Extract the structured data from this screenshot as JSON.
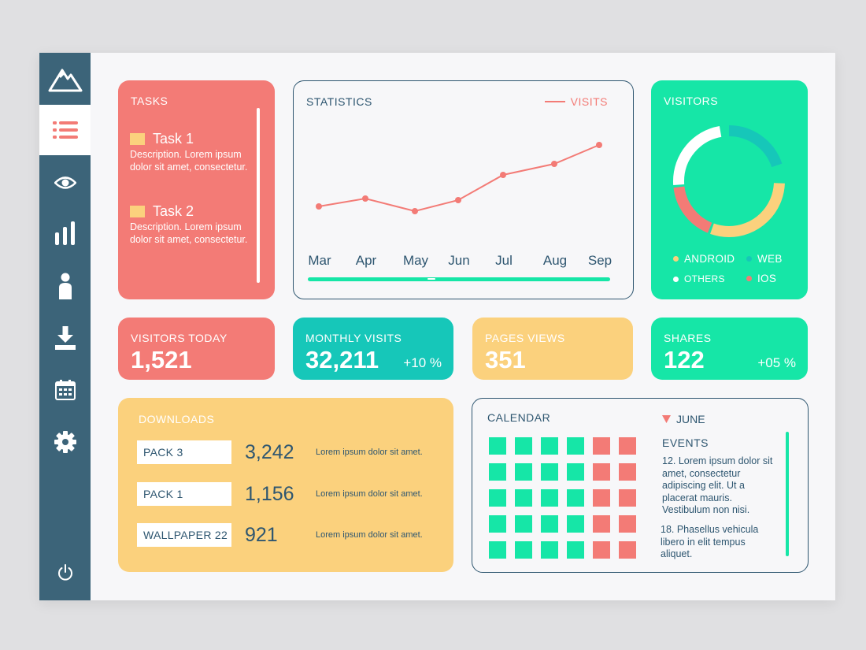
{
  "colors": {
    "red": "#f37b76",
    "teal": "#16c7b9",
    "yellow": "#fbd17d",
    "green": "#16e6a7",
    "navy": "#2e5670",
    "sidebar": "#3c6479"
  },
  "sidebar": {
    "logo_icon": "mountain-icon",
    "items": [
      {
        "icon": "list-icon",
        "active": true
      },
      {
        "icon": "eye-icon",
        "active": false
      },
      {
        "icon": "bar-chart-icon",
        "active": false
      },
      {
        "icon": "user-icon",
        "active": false
      },
      {
        "icon": "download-icon",
        "active": false
      },
      {
        "icon": "calendar-icon",
        "active": false
      },
      {
        "icon": "gear-icon",
        "active": false
      }
    ],
    "bottom_icon": "power-icon"
  },
  "tasks": {
    "title": "TASKS",
    "items": [
      {
        "title": "Task 1",
        "description": "Description. Lorem ipsum dolor sit amet, consectetur."
      },
      {
        "title": "Task 2",
        "description": "Description. Lorem ipsum dolor sit amet, consectetur."
      }
    ]
  },
  "statistics": {
    "title": "STATISTICS",
    "legend": "VISITS",
    "months": [
      "Mar",
      "Apr",
      "May",
      "Jun",
      "Jul",
      "Aug",
      "Sep"
    ]
  },
  "visitors": {
    "title": "VISITORS",
    "legend": [
      {
        "label": "ANDROID",
        "color": "#fbd17d"
      },
      {
        "label": "WEB",
        "color": "#16c7b9"
      },
      {
        "label": "OTHERS",
        "color": "#ffffff"
      },
      {
        "label": "IOS",
        "color": "#f37b76"
      }
    ]
  },
  "stats": {
    "visitors_today": {
      "label": "VISITORS TODAY",
      "value": "1,521"
    },
    "monthly_visits": {
      "label": "MONTHLY VISITS",
      "value": "32,211",
      "change": "+10 %"
    },
    "pages_views": {
      "label": "PAGES VIEWS",
      "value": "351"
    },
    "shares": {
      "label": "SHARES",
      "value": "122",
      "change": "+05 %"
    }
  },
  "downloads": {
    "title": "DOWNLOADS",
    "rows": [
      {
        "name": "PACK  3",
        "count": "3,242",
        "desc": "Lorem ipsum dolor sit amet."
      },
      {
        "name": "PACK  1",
        "count": "1,156",
        "desc": "Lorem ipsum dolor sit amet."
      },
      {
        "name": "WALLPAPER 22",
        "count": "921",
        "desc": "Lorem ipsum dolor sit amet."
      }
    ]
  },
  "calendar": {
    "title": "CALENDAR",
    "month": "JUNE",
    "events_title": "EVENTS",
    "events": [
      "12. Lorem ipsum dolor sit amet, consectetur adipiscing elit. Ut a placerat mauris. Vestibulum non nisi.",
      "18. Phasellus vehicula libero in elit tempus aliquet."
    ],
    "grid": [
      [
        "green",
        "green",
        "green",
        "green",
        "red",
        "red"
      ],
      [
        "green",
        "green",
        "green",
        "green",
        "red",
        "red"
      ],
      [
        "green",
        "green",
        "green",
        "green",
        "red",
        "red"
      ],
      [
        "green",
        "green",
        "green",
        "green",
        "red",
        "red"
      ],
      [
        "green",
        "green",
        "green",
        "green",
        "red",
        "red"
      ]
    ]
  },
  "chart_data": {
    "type": "line",
    "categories": [
      "Mar",
      "Apr",
      "May",
      "Jun",
      "Jul",
      "Aug",
      "Sep"
    ],
    "series": [
      {
        "name": "VISITS",
        "values": [
          20,
          25,
          17,
          24,
          40,
          47,
          59
        ]
      }
    ],
    "title": "STATISTICS",
    "xlabel": "",
    "ylabel": "",
    "ylim": [
      0,
      80
    ],
    "grid": false,
    "legend": "top-right"
  }
}
